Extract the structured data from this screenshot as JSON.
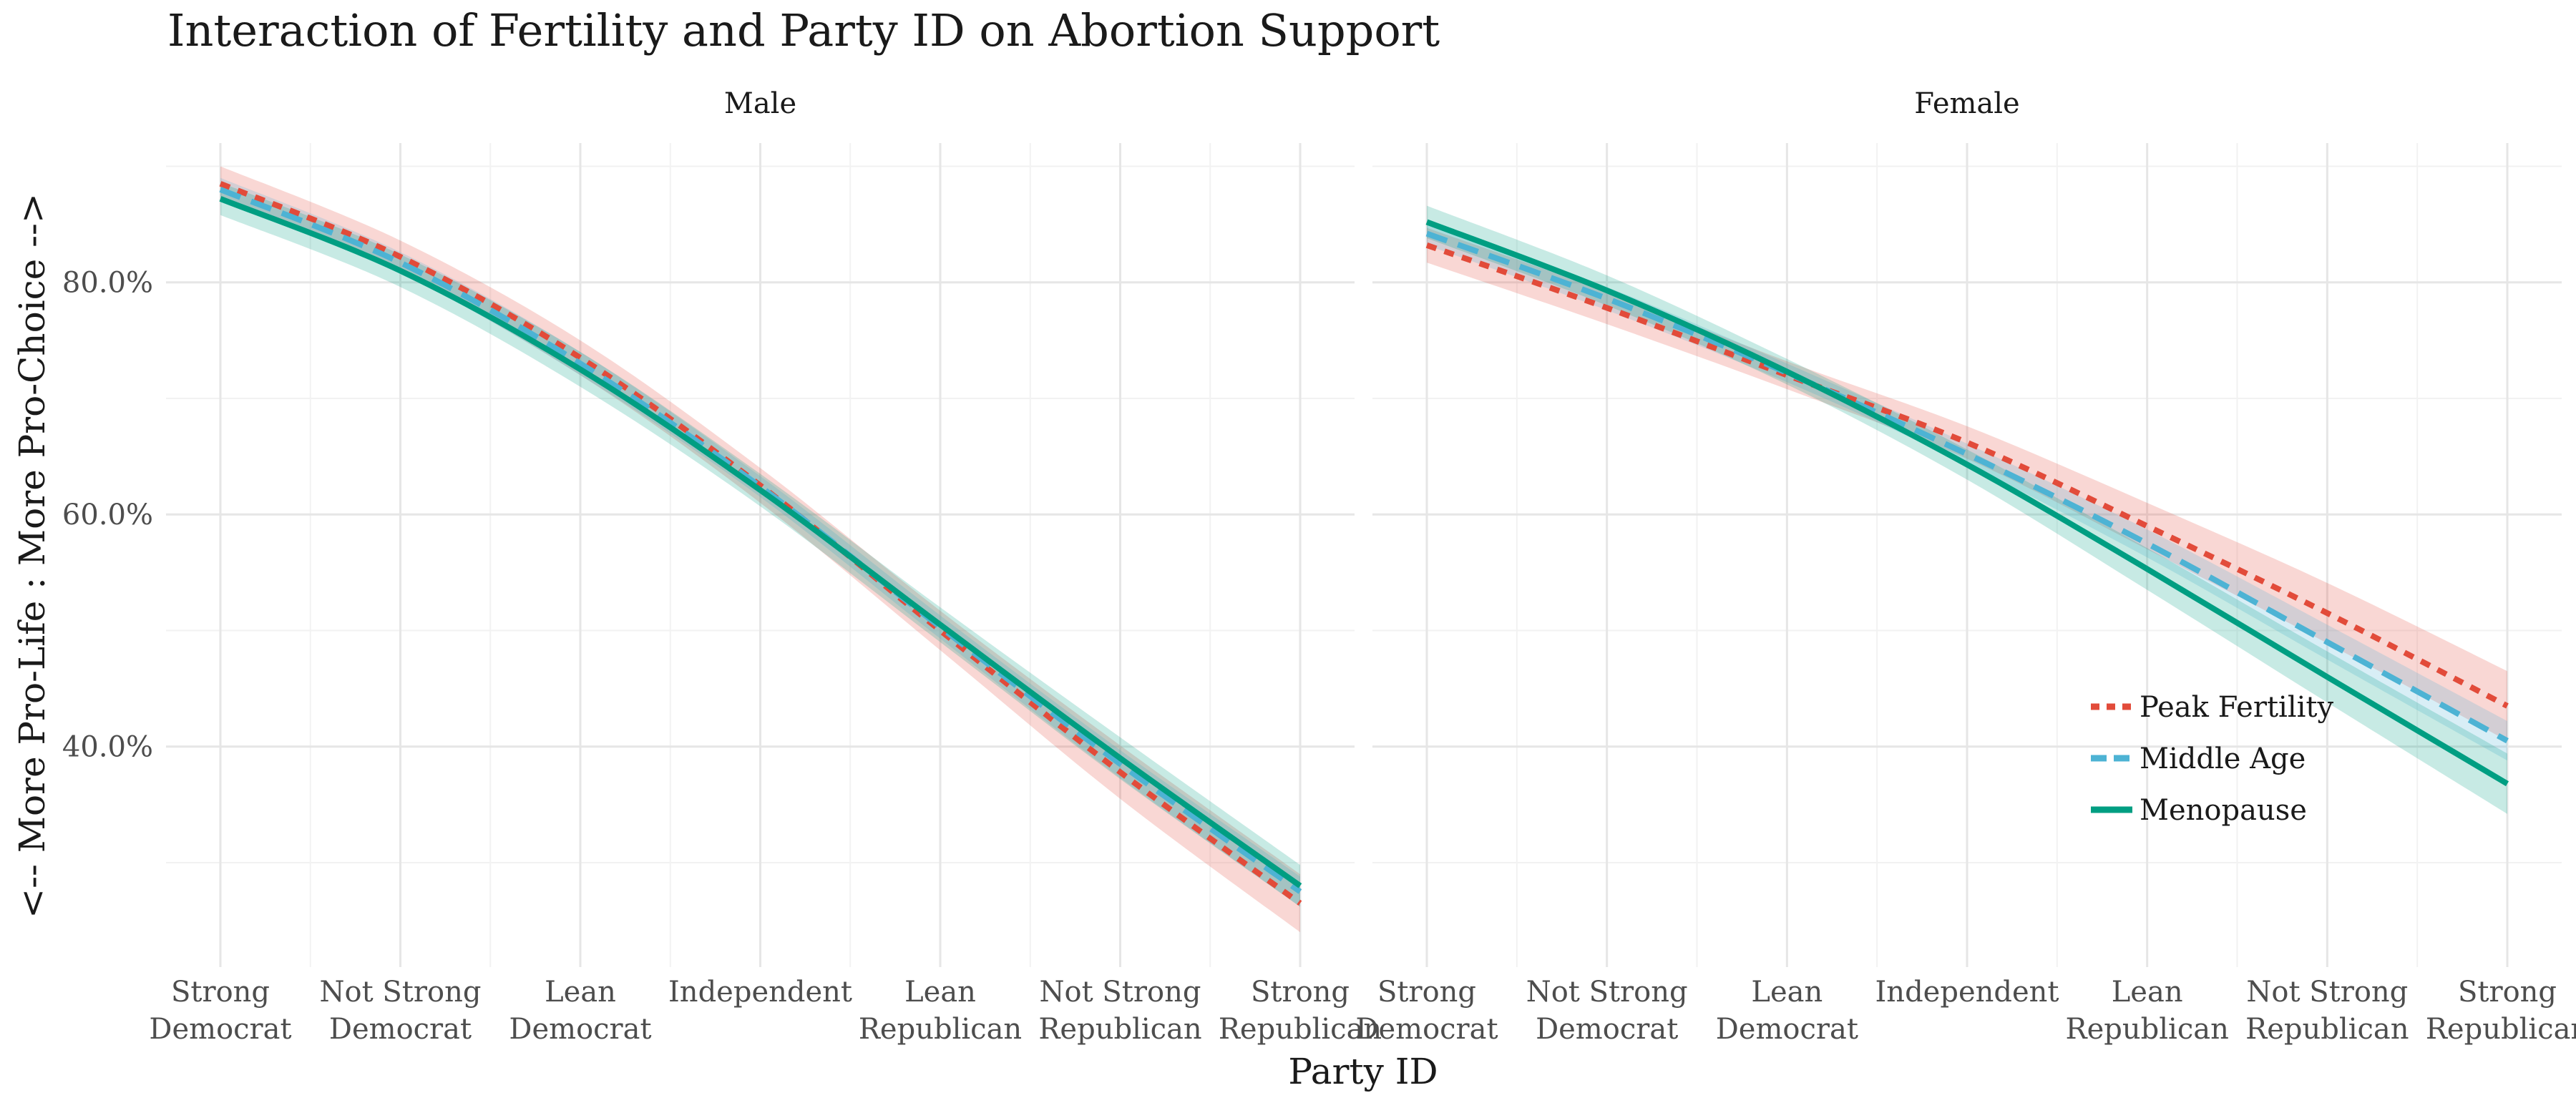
{
  "chart_data": {
    "type": "line",
    "title": "Interaction of Fertility and Party ID on Abortion Support",
    "xlabel": "Party ID",
    "ylabel": "<-- More Pro-Life : More Pro-Choice -->",
    "categories": [
      [
        "Strong",
        "Democrat"
      ],
      [
        "Not Strong",
        "Democrat"
      ],
      [
        "Lean",
        "Democrat"
      ],
      [
        "Independent"
      ],
      [
        "Lean",
        "Republican"
      ],
      [
        "Not Strong",
        "Republican"
      ],
      [
        "Strong",
        "Republican"
      ]
    ],
    "ylim": [
      21,
      92
    ],
    "yticks": [
      40,
      60,
      80
    ],
    "ytick_labels": [
      "40.0%",
      "60.0%",
      "80.0%"
    ],
    "grid": true,
    "legend_position": "inside-bottom-right",
    "series_styles": [
      {
        "name": "Peak Fertility",
        "color": "#E24B3A",
        "dash": "dotted"
      },
      {
        "name": "Middle Age",
        "color": "#4DB3D4",
        "dash": "dashed"
      },
      {
        "name": "Menopause",
        "color": "#009E82",
        "dash": "solid"
      }
    ],
    "panels": [
      {
        "strip": "Male",
        "series": [
          {
            "name": "Peak Fertility",
            "values": [
              88.5,
              82.2,
              73.5,
              62.5,
              50.0,
              37.8,
              26.5
            ],
            "lower": [
              87.0,
              80.8,
              72.0,
              61.0,
              48.3,
              35.5,
              24.0
            ],
            "upper": [
              90.0,
              83.6,
              75.0,
              64.0,
              51.7,
              40.1,
              29.0
            ]
          },
          {
            "name": "Middle Age",
            "values": [
              88.0,
              81.7,
              73.0,
              62.4,
              50.3,
              38.5,
              27.5
            ],
            "lower": [
              87.0,
              80.8,
              72.0,
              61.5,
              49.3,
              37.3,
              26.2
            ],
            "upper": [
              89.0,
              82.6,
              74.0,
              63.3,
              51.3,
              39.7,
              28.8
            ]
          },
          {
            "name": "Menopause",
            "values": [
              87.2,
              81.0,
              72.5,
              62.1,
              50.5,
              39.0,
              28.0
            ],
            "lower": [
              85.8,
              79.6,
              71.0,
              60.7,
              49.0,
              37.2,
              26.2
            ],
            "upper": [
              88.6,
              82.4,
              74.0,
              63.5,
              52.0,
              40.8,
              29.8
            ]
          }
        ]
      },
      {
        "strip": "Female",
        "series": [
          {
            "name": "Peak Fertility",
            "values": [
              83.2,
              77.8,
              72.0,
              66.2,
              59.0,
              51.5,
              43.5
            ],
            "lower": [
              81.7,
              76.4,
              70.8,
              64.8,
              57.0,
              48.9,
              40.5
            ],
            "upper": [
              84.7,
              79.2,
              73.2,
              67.6,
              61.0,
              54.1,
              46.5
            ]
          },
          {
            "name": "Middle Age",
            "values": [
              84.2,
              78.6,
              72.2,
              65.2,
              57.5,
              49.0,
              40.5
            ],
            "lower": [
              83.2,
              77.6,
              71.4,
              64.3,
              56.3,
              47.5,
              38.8
            ],
            "upper": [
              85.2,
              79.6,
              73.0,
              66.1,
              58.7,
              50.5,
              42.2
            ]
          },
          {
            "name": "Menopause",
            "values": [
              85.2,
              79.3,
              72.3,
              64.3,
              55.3,
              46.0,
              36.8
            ],
            "lower": [
              83.8,
              78.0,
              71.2,
              63.0,
              53.5,
              43.8,
              34.2
            ],
            "upper": [
              86.6,
              80.6,
              73.4,
              65.6,
              57.1,
              48.2,
              39.4
            ]
          }
        ]
      }
    ]
  }
}
